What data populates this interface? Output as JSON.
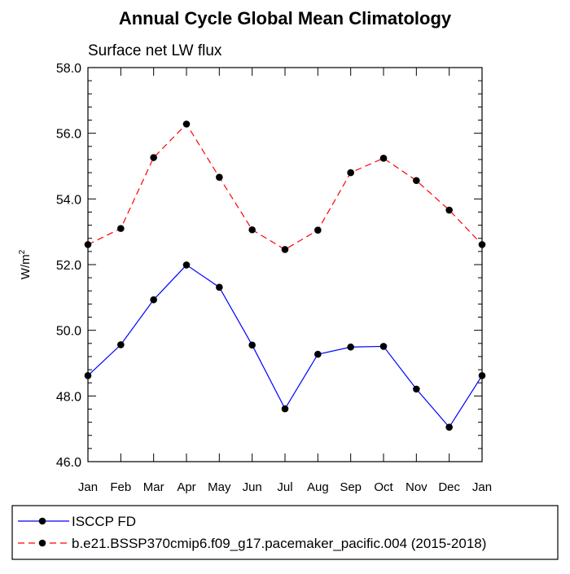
{
  "chart_data": {
    "type": "line",
    "title": "Annual Cycle Global Mean Climatology",
    "subtitle": "Surface net LW flux",
    "xlabel": "",
    "ylabel": "W/m",
    "ylabel_superscript": "2",
    "categories": [
      "Jan",
      "Feb",
      "Mar",
      "Apr",
      "May",
      "Jun",
      "Jul",
      "Aug",
      "Sep",
      "Oct",
      "Nov",
      "Dec",
      "Jan"
    ],
    "ylim": [
      46.0,
      58.0
    ],
    "yticks": [
      "46.0",
      "48.0",
      "50.0",
      "52.0",
      "54.0",
      "56.0",
      "58.0"
    ],
    "grid": false,
    "legend_position": "bottom",
    "series": [
      {
        "name": "ISCCP FD",
        "color": "#0000ff",
        "dash": "solid",
        "values": [
          48.62,
          49.56,
          50.93,
          51.99,
          51.31,
          49.55,
          47.61,
          49.27,
          49.49,
          49.51,
          48.21,
          47.05,
          48.62
        ]
      },
      {
        "name": "b.e21.BSSP370cmip6.f09_g17.pacemaker_pacific.004 (2015-2018)",
        "color": "#ff0000",
        "dash": "dashed",
        "values": [
          52.61,
          53.1,
          55.26,
          56.28,
          54.66,
          53.06,
          52.46,
          53.05,
          54.8,
          55.24,
          54.56,
          53.66,
          52.61
        ]
      }
    ]
  }
}
